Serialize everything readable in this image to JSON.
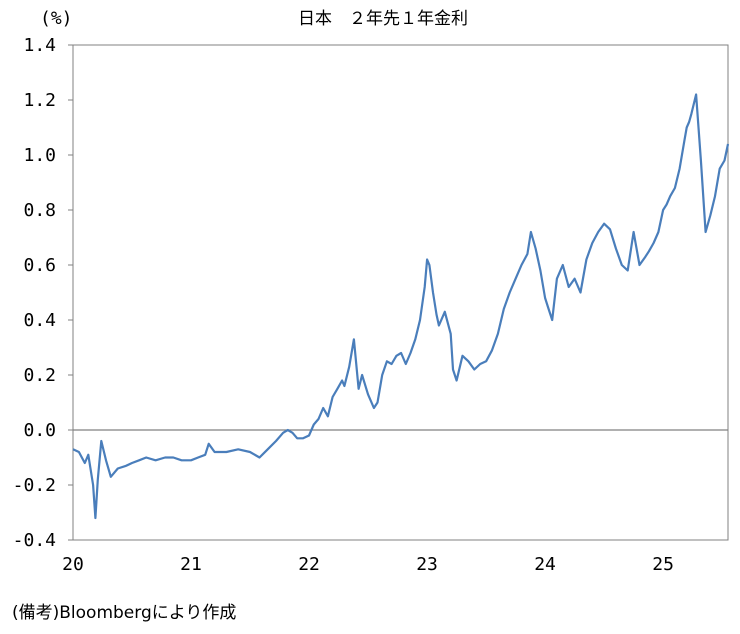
{
  "chart_data": {
    "type": "line",
    "title": "日本　２年先１年金利",
    "unit_label": "(%)",
    "source_note": "(備考)Bloombergにより作成",
    "ylim": [
      -0.4,
      1.4
    ],
    "yticks": [
      "1.4",
      "1.2",
      "1.0",
      "0.8",
      "0.6",
      "0.4",
      "0.2",
      "0.0",
      "-0.2",
      "-0.4"
    ],
    "ytick_values": [
      1.4,
      1.2,
      1.0,
      0.8,
      0.6,
      0.4,
      0.2,
      0.0,
      -0.2,
      -0.4
    ],
    "xlim": [
      2020.0,
      2025.55
    ],
    "xticks": [
      "20",
      "21",
      "22",
      "23",
      "24",
      "25"
    ],
    "xtick_values": [
      2020,
      2021,
      2022,
      2023,
      2024,
      2025
    ],
    "zero_line": true,
    "grid": false,
    "line_color": "#4a7ebb",
    "series": [
      {
        "x": [
          2020.0,
          2020.05,
          2020.1,
          2020.13,
          2020.17,
          2020.19,
          2020.21,
          2020.24,
          2020.28,
          2020.32,
          2020.38,
          2020.45,
          2020.5,
          2020.56,
          2020.62,
          2020.7,
          2020.78,
          2020.85,
          2020.92,
          2021.0,
          2021.06,
          2021.12,
          2021.15,
          2021.2,
          2021.3,
          2021.4,
          2021.5,
          2021.58,
          2021.65,
          2021.72,
          2021.78,
          2021.82,
          2021.86,
          2021.9,
          2021.95,
          2022.0,
          2022.04,
          2022.08,
          2022.12,
          2022.16,
          2022.2,
          2022.24,
          2022.28,
          2022.3,
          2022.34,
          2022.38,
          2022.42,
          2022.45,
          2022.5,
          2022.55,
          2022.58,
          2022.62,
          2022.66,
          2022.7,
          2022.74,
          2022.78,
          2022.82,
          2022.86,
          2022.9,
          2022.94,
          2022.98,
          2023.0,
          2023.02,
          2023.05,
          2023.08,
          2023.1,
          2023.15,
          2023.2,
          2023.22,
          2023.25,
          2023.3,
          2023.35,
          2023.4,
          2023.45,
          2023.5,
          2023.55,
          2023.6,
          2023.65,
          2023.7,
          2023.75,
          2023.8,
          2023.85,
          2023.88,
          2023.92,
          2023.96,
          2024.0,
          2024.03,
          2024.06,
          2024.1,
          2024.15,
          2024.2,
          2024.25,
          2024.3,
          2024.35,
          2024.4,
          2024.45,
          2024.5,
          2024.55,
          2024.6,
          2024.65,
          2024.7,
          2024.75,
          2024.8,
          2024.85,
          2024.88,
          2024.92,
          2024.96,
          2025.0,
          2025.03,
          2025.06,
          2025.1,
          2025.14,
          2025.18,
          2025.2,
          2025.22,
          2025.24,
          2025.28,
          2025.32,
          2025.36,
          2025.4,
          2025.44,
          2025.48,
          2025.52,
          2025.55
        ],
        "y": [
          -0.07,
          -0.08,
          -0.12,
          -0.09,
          -0.2,
          -0.32,
          -0.18,
          -0.04,
          -0.11,
          -0.17,
          -0.14,
          -0.13,
          -0.12,
          -0.11,
          -0.1,
          -0.11,
          -0.1,
          -0.1,
          -0.11,
          -0.11,
          -0.1,
          -0.09,
          -0.05,
          -0.08,
          -0.08,
          -0.07,
          -0.08,
          -0.1,
          -0.07,
          -0.04,
          -0.01,
          0.0,
          -0.01,
          -0.03,
          -0.03,
          -0.02,
          0.02,
          0.04,
          0.08,
          0.05,
          0.12,
          0.15,
          0.18,
          0.16,
          0.23,
          0.33,
          0.15,
          0.2,
          0.13,
          0.08,
          0.1,
          0.2,
          0.25,
          0.24,
          0.27,
          0.28,
          0.24,
          0.28,
          0.33,
          0.4,
          0.52,
          0.62,
          0.6,
          0.5,
          0.42,
          0.38,
          0.43,
          0.35,
          0.22,
          0.18,
          0.27,
          0.25,
          0.22,
          0.24,
          0.25,
          0.29,
          0.35,
          0.44,
          0.5,
          0.55,
          0.6,
          0.64,
          0.72,
          0.66,
          0.58,
          0.48,
          0.44,
          0.4,
          0.55,
          0.6,
          0.52,
          0.55,
          0.5,
          0.62,
          0.68,
          0.72,
          0.75,
          0.73,
          0.66,
          0.6,
          0.58,
          0.72,
          0.6,
          0.63,
          0.65,
          0.68,
          0.72,
          0.8,
          0.82,
          0.85,
          0.88,
          0.95,
          1.05,
          1.1,
          1.12,
          1.15,
          1.22,
          0.98,
          0.72,
          0.78,
          0.85,
          0.95,
          0.98,
          1.04
        ]
      }
    ]
  }
}
